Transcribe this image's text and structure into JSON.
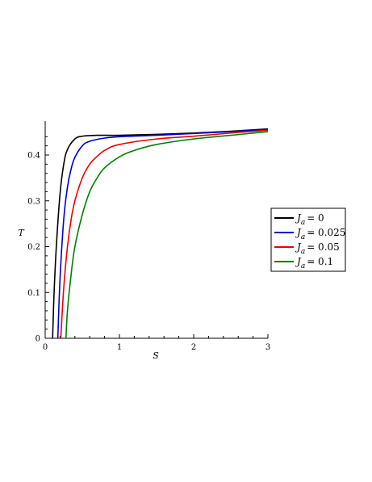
{
  "chart_data": {
    "type": "line",
    "title": "",
    "xlabel": "S",
    "ylabel": "T",
    "xlim": [
      0,
      3
    ],
    "ylim": [
      0,
      0.45
    ],
    "x_ticks": [
      "0",
      "1",
      "2",
      "3"
    ],
    "y_ticks": [
      "0",
      "0.1",
      "0.2",
      "0.3",
      "0.4"
    ],
    "grid": false,
    "legend_position": "right",
    "series": [
      {
        "name": "J_a = 0",
        "param_label": "0",
        "color": "#000000",
        "x": [
          0.1,
          0.12,
          0.15,
          0.2,
          0.25,
          0.3,
          0.4,
          0.5,
          0.7,
          1.0,
          1.5,
          2.0,
          2.5,
          3.0
        ],
        "y": [
          0.0,
          0.1,
          0.2,
          0.315,
          0.38,
          0.412,
          0.435,
          0.441,
          0.443,
          0.443,
          0.445,
          0.448,
          0.452,
          0.457
        ]
      },
      {
        "name": "J_a = 0.025",
        "param_label": "0.025",
        "color": "#0000cc",
        "x": [
          0.17,
          0.2,
          0.25,
          0.3,
          0.35,
          0.4,
          0.5,
          0.6,
          0.8,
          1.0,
          1.5,
          2.0,
          2.5,
          3.0
        ],
        "y": [
          0.0,
          0.13,
          0.26,
          0.33,
          0.37,
          0.395,
          0.42,
          0.43,
          0.437,
          0.44,
          0.443,
          0.447,
          0.451,
          0.456
        ]
      },
      {
        "name": "J_a = 0.05",
        "param_label": "0.05",
        "color": "#ee0000",
        "x": [
          0.21,
          0.25,
          0.3,
          0.35,
          0.4,
          0.5,
          0.6,
          0.7,
          0.8,
          1.0,
          1.5,
          2.0,
          2.5,
          3.0
        ],
        "y": [
          0.0,
          0.11,
          0.2,
          0.26,
          0.3,
          0.35,
          0.38,
          0.397,
          0.41,
          0.423,
          0.435,
          0.441,
          0.448,
          0.454
        ]
      },
      {
        "name": "J_a = 0.1",
        "param_label": "0.1",
        "color": "#008000",
        "x": [
          0.28,
          0.3,
          0.35,
          0.4,
          0.5,
          0.6,
          0.7,
          0.8,
          1.0,
          1.2,
          1.5,
          2.0,
          2.5,
          3.0
        ],
        "y": [
          0.0,
          0.06,
          0.14,
          0.2,
          0.27,
          0.32,
          0.35,
          0.372,
          0.396,
          0.41,
          0.423,
          0.435,
          0.443,
          0.451
        ]
      }
    ]
  },
  "legend": {
    "symbol": "J",
    "subscript": "a",
    "equals": "="
  }
}
